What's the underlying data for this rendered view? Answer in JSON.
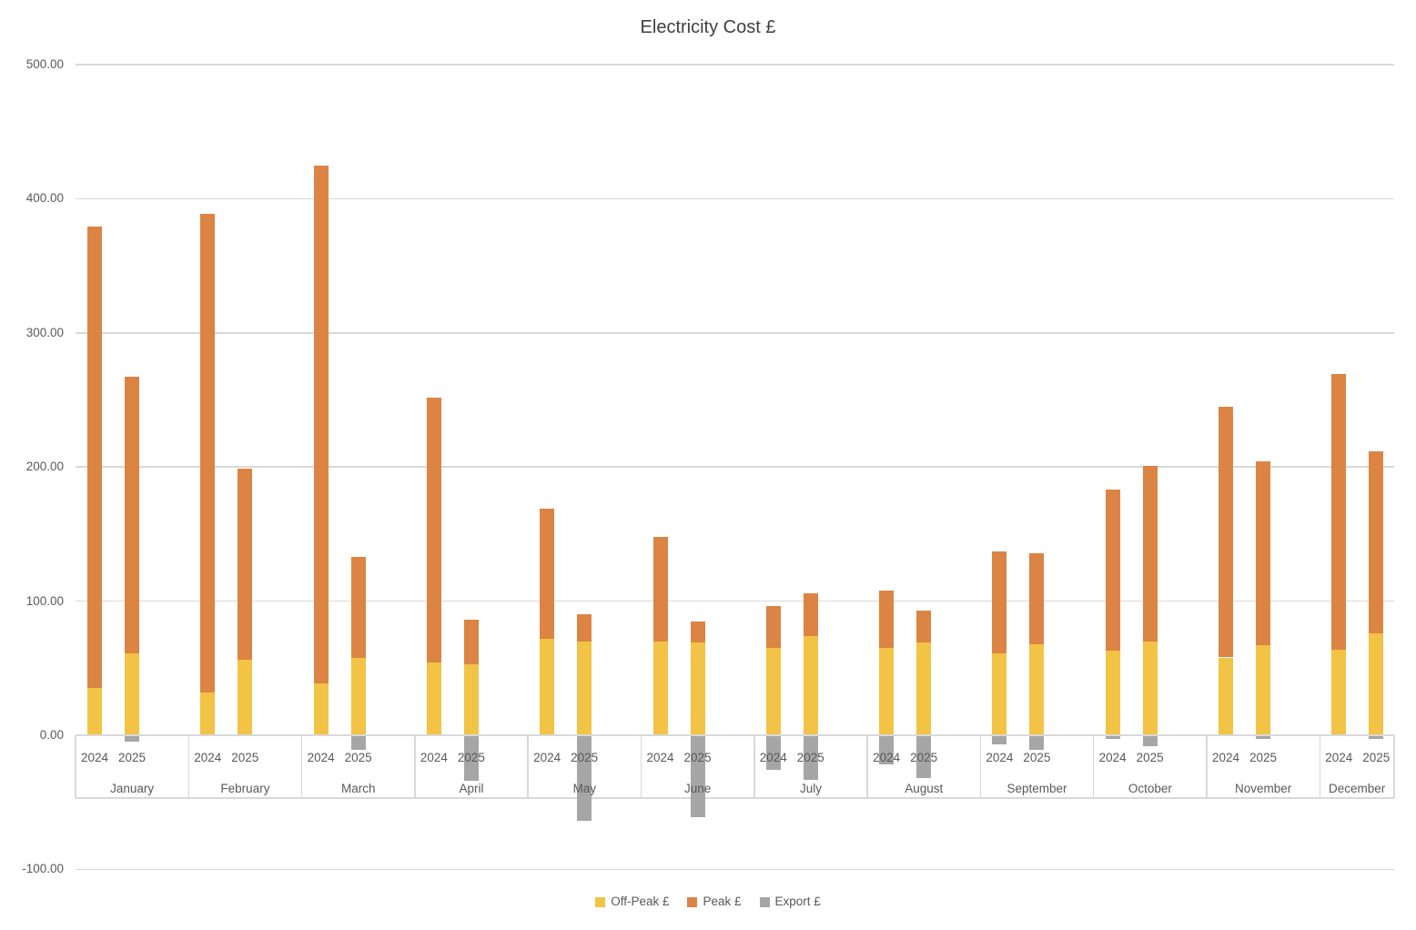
{
  "chart_data": {
    "type": "bar",
    "stacked": true,
    "title": "Electricity Cost £",
    "categories": [
      "January",
      "February",
      "March",
      "April",
      "May",
      "June",
      "July",
      "August",
      "September",
      "October",
      "November",
      "December"
    ],
    "groups": [
      "2024",
      "2025"
    ],
    "ylim": [
      -100,
      500
    ],
    "y_ticks": [
      500,
      400,
      300,
      200,
      100,
      0,
      -100
    ],
    "y_tick_labels": [
      "500.00",
      "400.00",
      "300.00",
      "200.00",
      "100.00",
      "0.00",
      "-100.00"
    ],
    "grid": true,
    "legend_position": "bottom",
    "series": [
      {
        "name": "Off-Peak £",
        "group": "2024",
        "values": [
          35,
          32,
          39,
          54,
          72,
          70,
          65,
          65,
          61,
          63,
          58,
          64
        ]
      },
      {
        "name": "Peak £",
        "group": "2024",
        "values": [
          344,
          357,
          386,
          198,
          97,
          78,
          31,
          43,
          76,
          120,
          187,
          205
        ]
      },
      {
        "name": "Export £",
        "group": "2024",
        "values": [
          0,
          0,
          0,
          0,
          0,
          0,
          -26,
          -22,
          -7,
          -3,
          0,
          0
        ]
      },
      {
        "name": "Off-Peak £",
        "group": "2025",
        "values": [
          61,
          56,
          58,
          53,
          70,
          69,
          74,
          69,
          68,
          70,
          67,
          76
        ]
      },
      {
        "name": "Peak £",
        "group": "2025",
        "values": [
          206,
          143,
          75,
          33,
          20,
          16,
          32,
          24,
          68,
          131,
          137,
          136
        ]
      },
      {
        "name": "Export £",
        "group": "2025",
        "values": [
          -5,
          0,
          -11,
          -34,
          -64,
          -61,
          -33,
          -32,
          -11,
          -8,
          -3,
          -3
        ]
      }
    ],
    "legend": [
      {
        "label": "Off-Peak £",
        "color": "#F2C344"
      },
      {
        "label": "Peak £",
        "color": "#DC8444"
      },
      {
        "label": "Export £",
        "color": "#A6A6A6"
      }
    ]
  }
}
